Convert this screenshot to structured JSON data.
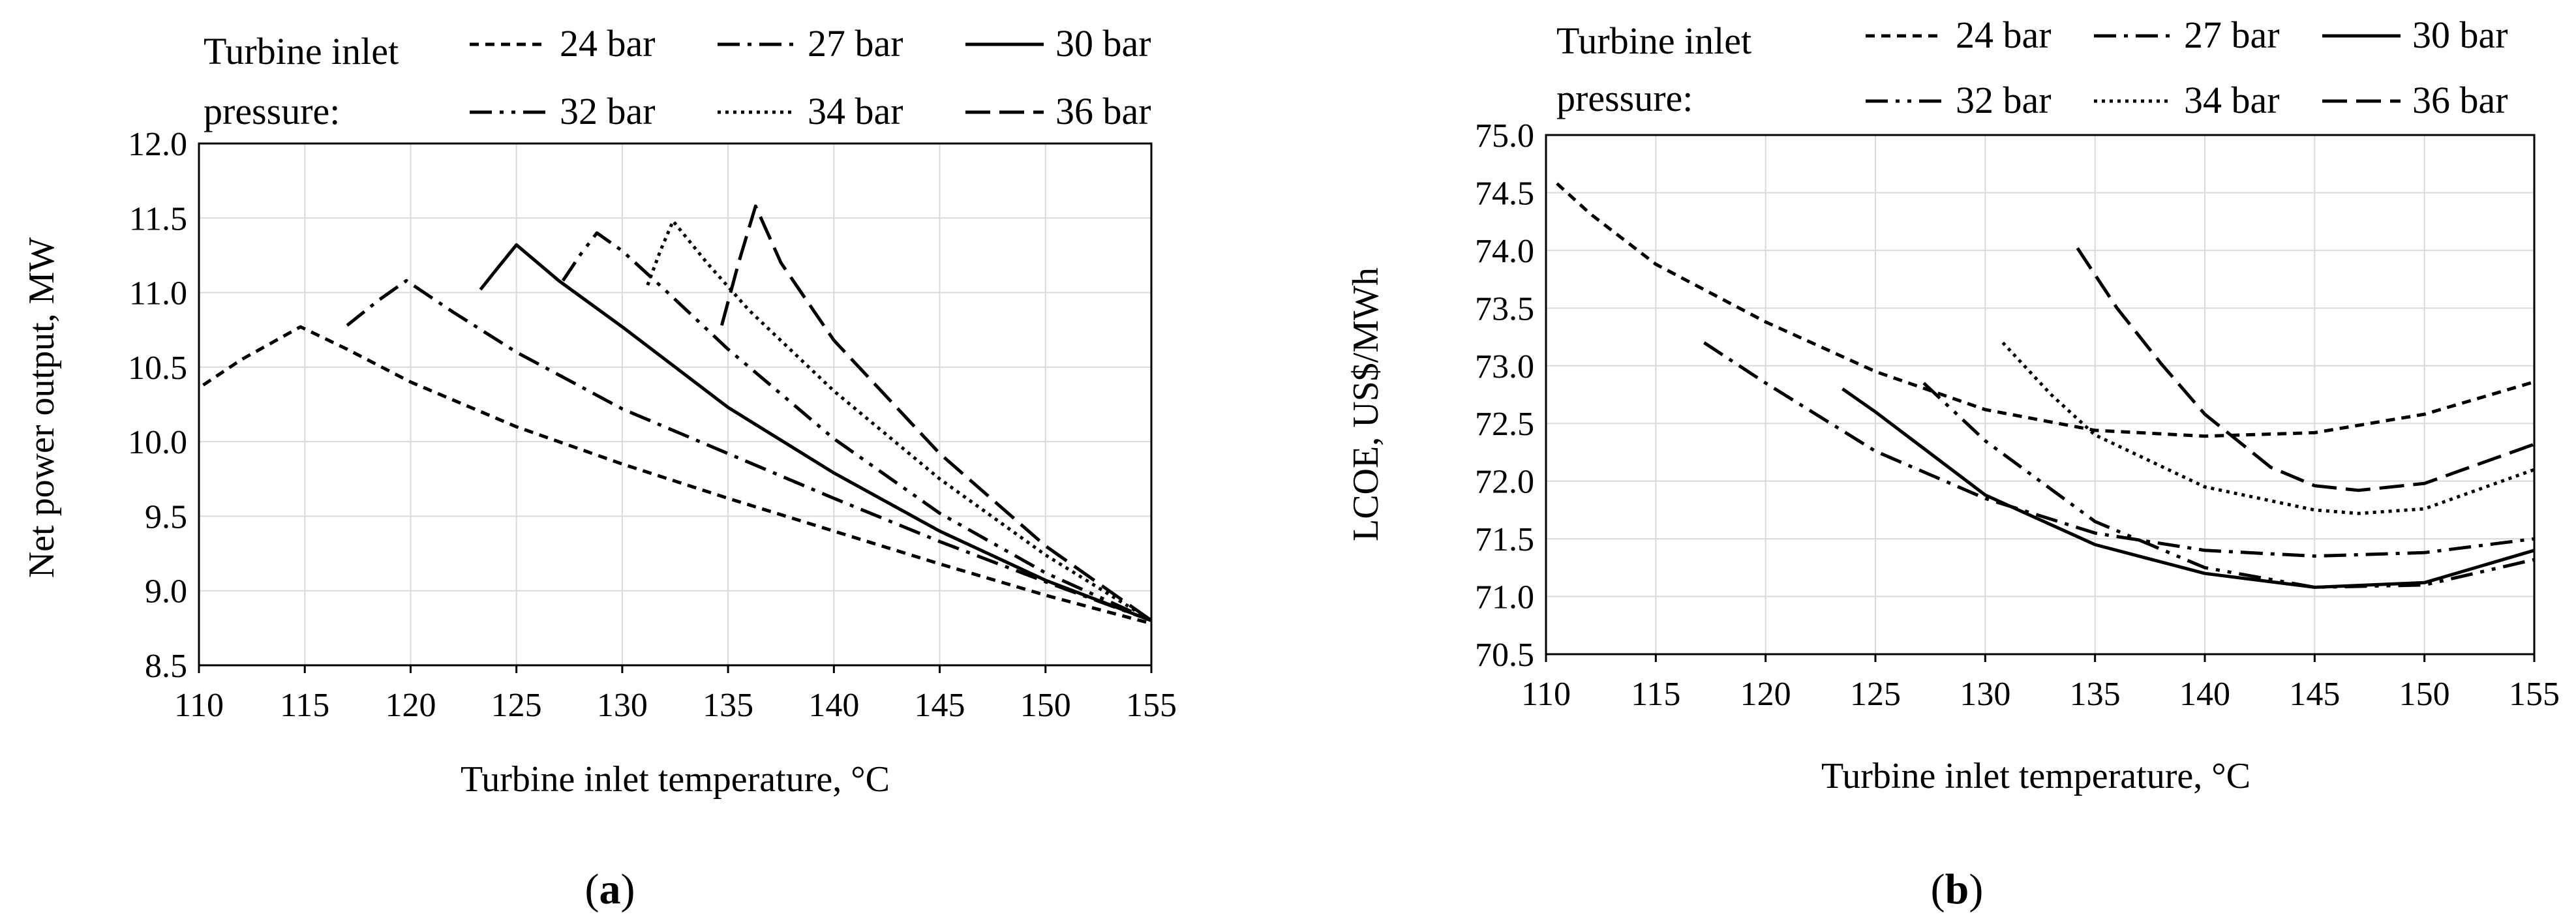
{
  "chart_data": [
    {
      "type": "line",
      "panel_label": "a",
      "legend_title_line1": "Turbine inlet",
      "legend_title_line2": "pressure:",
      "xlabel": "Turbine inlet temperature, °C",
      "ylabel": "Net power output, MW",
      "xlim": [
        110,
        155
      ],
      "ylim": [
        8.5,
        12.0
      ],
      "xticks": [
        "110",
        "115",
        "120",
        "125",
        "130",
        "135",
        "140",
        "145",
        "150",
        "155"
      ],
      "yticks": [
        "8.5",
        "9.0",
        "9.5",
        "10.0",
        "10.5",
        "11.0",
        "11.5",
        "12.0"
      ],
      "grid": true,
      "series": [
        {
          "name": "24 bar",
          "dash": "14,10",
          "x": [
            110.2,
            112,
            114.8,
            117,
            120,
            125,
            130,
            135,
            140,
            145,
            150,
            155
          ],
          "y": [
            10.38,
            10.55,
            10.77,
            10.62,
            10.4,
            10.1,
            9.85,
            9.62,
            9.4,
            9.18,
            8.97,
            8.78
          ]
        },
        {
          "name": "27 bar",
          "dash": "34,12,6,12",
          "x": [
            117,
            118.5,
            119.8,
            122,
            125,
            130,
            135,
            140,
            145,
            150,
            155
          ],
          "y": [
            10.78,
            10.95,
            11.08,
            10.87,
            10.6,
            10.22,
            9.92,
            9.62,
            9.33,
            9.06,
            8.8
          ]
        },
        {
          "name": "30 bar",
          "dash": "none",
          "x": [
            123.3,
            124.2,
            125,
            127,
            130,
            135,
            140,
            145,
            150,
            155
          ],
          "y": [
            11.02,
            11.18,
            11.32,
            11.08,
            10.77,
            10.23,
            9.79,
            9.4,
            9.07,
            8.8
          ]
        },
        {
          "name": "32 bar",
          "dash": "34,12,6,12,6,12",
          "x": [
            127.2,
            128,
            128.8,
            130,
            132,
            135,
            140,
            145,
            150,
            155
          ],
          "y": [
            11.08,
            11.25,
            11.4,
            11.28,
            11.02,
            10.62,
            10.02,
            9.52,
            9.12,
            8.8
          ]
        },
        {
          "name": "34 bar",
          "dash": "5,7",
          "x": [
            131.2,
            131.8,
            132.4,
            134,
            136,
            140,
            145,
            150,
            155
          ],
          "y": [
            11.05,
            11.28,
            11.48,
            11.2,
            10.88,
            10.34,
            9.75,
            9.24,
            8.8
          ]
        },
        {
          "name": "36 bar",
          "dash": "38,14",
          "x": [
            134.7,
            135.5,
            136.3,
            137.5,
            140,
            145,
            150,
            155
          ],
          "y": [
            10.78,
            11.2,
            11.58,
            11.2,
            10.68,
            9.92,
            9.3,
            8.8
          ]
        }
      ]
    },
    {
      "type": "line",
      "panel_label": "b",
      "legend_title_line1": "Turbine inlet",
      "legend_title_line2": "pressure:",
      "xlabel": "Turbine inlet temperature, °C",
      "ylabel": "LCOE, US$/MWh",
      "xlim": [
        110,
        155
      ],
      "ylim": [
        70.5,
        75.0
      ],
      "xticks": [
        "110",
        "115",
        "120",
        "125",
        "130",
        "135",
        "140",
        "145",
        "150",
        "155"
      ],
      "yticks": [
        "70.5",
        "71.0",
        "71.5",
        "72.0",
        "72.5",
        "73.0",
        "73.5",
        "74.0",
        "74.5",
        "75.0"
      ],
      "grid": true,
      "series": [
        {
          "name": "24 bar",
          "dash": "14,10",
          "x": [
            110.5,
            112,
            115,
            120,
            125,
            130,
            135,
            140,
            145,
            150,
            155
          ],
          "y": [
            74.58,
            74.32,
            73.88,
            73.38,
            72.95,
            72.62,
            72.44,
            72.39,
            72.42,
            72.58,
            72.86
          ]
        },
        {
          "name": "27 bar",
          "dash": "34,12,6,12",
          "x": [
            117.2,
            120,
            125,
            130,
            135,
            140,
            145,
            150,
            155
          ],
          "y": [
            73.2,
            72.85,
            72.26,
            71.85,
            71.55,
            71.4,
            71.35,
            71.38,
            71.5
          ]
        },
        {
          "name": "30 bar",
          "dash": "none",
          "x": [
            123.5,
            125,
            130,
            135,
            140,
            145,
            150,
            155
          ],
          "y": [
            72.8,
            72.6,
            71.88,
            71.45,
            71.2,
            71.08,
            71.12,
            71.4
          ]
        },
        {
          "name": "32 bar",
          "dash": "34,12,6,12,6,12",
          "x": [
            127.2,
            130,
            135,
            140,
            145,
            150,
            155
          ],
          "y": [
            72.85,
            72.35,
            71.65,
            71.25,
            71.08,
            71.1,
            71.32
          ]
        },
        {
          "name": "34 bar",
          "dash": "5,7",
          "x": [
            130.8,
            133,
            135,
            140,
            145,
            147,
            150,
            155
          ],
          "y": [
            73.2,
            72.75,
            72.4,
            71.95,
            71.75,
            71.72,
            71.76,
            72.1
          ]
        },
        {
          "name": "36 bar",
          "dash": "38,14",
          "x": [
            134.2,
            136,
            138,
            140,
            143,
            145,
            147,
            150,
            155
          ],
          "y": [
            74.02,
            73.5,
            73.02,
            72.58,
            72.12,
            71.96,
            71.92,
            71.98,
            72.32
          ]
        }
      ]
    }
  ]
}
